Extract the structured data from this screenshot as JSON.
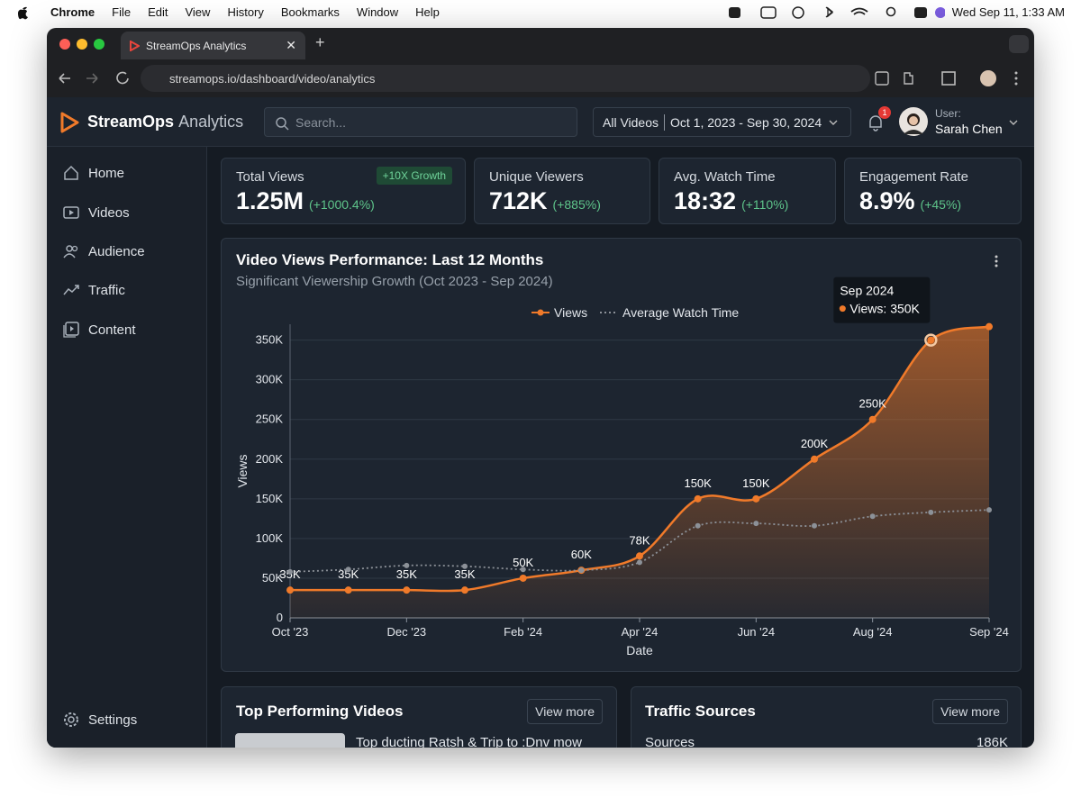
{
  "menubar": {
    "app": "Chrome",
    "items": [
      "File",
      "Edit",
      "View",
      "History",
      "Bookmarks",
      "Window",
      "Help"
    ],
    "clock": "Wed Sep 11, 1:33 AM"
  },
  "browser": {
    "tab": "StreamOps Analytics",
    "url": "streamops.io/dashboard/video/analytics"
  },
  "header": {
    "brand": "StreamOps",
    "brand_suffix": "Analytics",
    "search": "Search...",
    "filter_scope": "All Videos",
    "filter_range": "Oct 1, 2023 - Sep 30, 2024",
    "notifications": "1",
    "user_label": "User:",
    "user_name": "Sarah Chen"
  },
  "sidebar": {
    "items": [
      "Home",
      "Videos",
      "Audience",
      "Traffic",
      "Content"
    ],
    "settings": "Settings"
  },
  "kpis": [
    {
      "label": "Total Views",
      "value": "1.25M",
      "change": "(+1000.4%)",
      "badge": "+10X Growth"
    },
    {
      "label": "Unique Viewers",
      "value": "712K",
      "change": "(+885%)"
    },
    {
      "label": "Avg. Watch Time",
      "value": "18:32",
      "change": "(+110%)"
    },
    {
      "label": "Engagement Rate",
      "value": "8.9%",
      "change": "(+45%)"
    }
  ],
  "chart_data": {
    "type": "line",
    "title": "Video Views Performance: Last 12 Months",
    "subtitle": "Significant Viewership Growth (Oct 2023 - Sep 2024)",
    "x_label": "Date",
    "y_label": "Views",
    "categories": [
      "Oct '23",
      null,
      "Dec '23",
      null,
      "Feb '24",
      null,
      "Apr '24",
      null,
      "Jun '24",
      null,
      "Aug '24",
      null,
      "Sep '24"
    ],
    "series": [
      {
        "name": "Views",
        "color": "#f07a2a",
        "values": [
          35000,
          35000,
          35000,
          35000,
          50000,
          60000,
          78000,
          150000,
          150000,
          200000,
          250000,
          350000,
          367000
        ],
        "value_labels": [
          "35K",
          "35K",
          "35K",
          "35K",
          "50K",
          "60K",
          "78K",
          "150K",
          "150K",
          "200K",
          "250K",
          null,
          null
        ]
      },
      {
        "name": "Average Watch Time",
        "color": "#8c9198",
        "values": [
          58000,
          61000,
          66000,
          65000,
          61000,
          60000,
          70000,
          116000,
          119000,
          116000,
          128000,
          133000,
          136000
        ]
      }
    ],
    "ylim": [
      0,
      370000
    ],
    "yticks": [
      0,
      {
        "value": 50000,
        "label": "50K"
      },
      {
        "value": 100000,
        "label": "100K"
      },
      {
        "value": 150000,
        "label": "150K"
      },
      {
        "value": 200000,
        "label": "200K"
      },
      {
        "value": 250000,
        "label": "250K"
      },
      {
        "value": 300000,
        "label": "300K"
      },
      {
        "value": 350000,
        "label": "350K"
      }
    ],
    "grid": true,
    "legend": "top",
    "tooltip": {
      "title": "Sep 2024",
      "label": "Views: 350K"
    }
  },
  "panels": [
    {
      "title": "Top Performing Videos",
      "button": "View more",
      "row": "Top ducting Ratsh & Trip to :Dnv mow"
    },
    {
      "title": "Traffic Sources",
      "button": "View more",
      "row_label": "Sources",
      "row_value": "186K"
    }
  ]
}
